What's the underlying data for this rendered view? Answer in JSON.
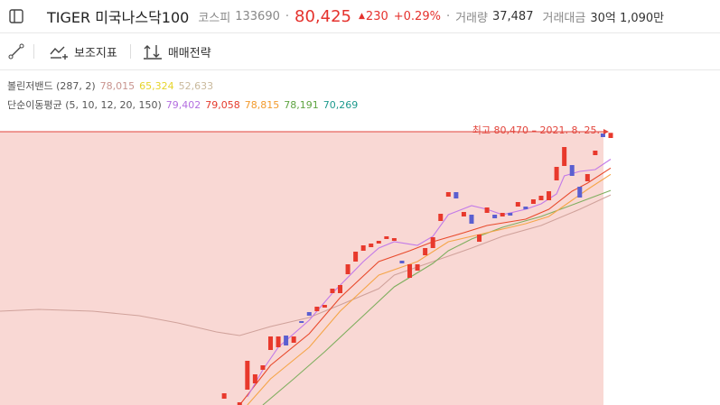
{
  "header": {
    "title": "TIGER 미국나스닥100",
    "market": "코스피",
    "code": "133690",
    "price": "80,425",
    "change": "230",
    "change_pct": "+0.29%",
    "volume_label": "거래량",
    "volume": "37,487",
    "amount_label": "거래대금",
    "amount": "30억 1,090만"
  },
  "toolbar": {
    "indicators": "보조지표",
    "strategy": "매매전략"
  },
  "legend": [
    {
      "label": "볼린저밴드 (287, 2)",
      "items": [
        {
          "text": "78,015",
          "color": "#c9958f"
        },
        {
          "text": "65,324",
          "color": "#e6d42a"
        },
        {
          "text": "52,633",
          "color": "#c9b99c"
        }
      ]
    },
    {
      "label": "단순이동평균 (5, 10, 12, 20, 150)",
      "items": [
        {
          "text": "79,402",
          "color": "#b46fe0"
        },
        {
          "text": "79,058",
          "color": "#e53b2c"
        },
        {
          "text": "78,815",
          "color": "#f39a2c"
        },
        {
          "text": "78,191",
          "color": "#5fa442"
        },
        {
          "text": "70,269",
          "color": "#1e9a8e"
        }
      ]
    }
  ],
  "chart_data": {
    "type": "candlestick",
    "xlim": [
      0,
      79
    ],
    "ylim": [
      69865,
      80785
    ],
    "up_color": "#e8392c",
    "down_color": "#5b5fd0",
    "annotation": {
      "label": "최고 80,470 – 2021. 8. 25.",
      "value": 80470,
      "color": "#e2453c"
    },
    "open": [
      null,
      null,
      null,
      null,
      null,
      null,
      null,
      null,
      null,
      null,
      null,
      null,
      null,
      null,
      null,
      null,
      null,
      null,
      null,
      null,
      null,
      null,
      null,
      null,
      null,
      null,
      null,
      null,
      null,
      70110,
      null,
      69865,
      70460,
      70705,
      71230,
      72000,
      72105,
      72560,
      72280,
      73120,
      73470,
      73505,
      73645,
      74205,
      74205,
      74940,
      75430,
      75850,
      75990,
      76130,
      76305,
      76235,
      75465,
      74800,
      75080,
      75675,
      75955,
      77005,
      77950,
      78125,
      77180,
      77250,
      76200,
      77320,
      77250,
      77180,
      77320,
      77565,
      77565,
      77670,
      77810,
      77810,
      78580,
      79140,
      79175,
      78335,
      78545,
      79560,
      80400,
      80225
    ],
    "close": [
      null,
      null,
      null,
      null,
      null,
      null,
      null,
      null,
      null,
      null,
      null,
      null,
      null,
      null,
      null,
      null,
      null,
      null,
      null,
      null,
      null,
      null,
      null,
      null,
      null,
      null,
      null,
      null,
      null,
      70320,
      null,
      69970,
      71580,
      71055,
      71405,
      72525,
      72525,
      72175,
      72525,
      73050,
      73330,
      73680,
      73750,
      74380,
      74520,
      75325,
      75815,
      76060,
      76130,
      76235,
      76410,
      76340,
      75360,
      75325,
      75325,
      75955,
      76375,
      77285,
      78125,
      77880,
      77355,
      76900,
      76480,
      77530,
      77110,
      77320,
      77215,
      77740,
      77460,
      77845,
      77985,
      78160,
      79105,
      79875,
      78755,
      77915,
      78825,
      79735,
      80260,
      80425
    ],
    "series": [
      {
        "color": "#d0a29b",
        "x": [
          0,
          5,
          12,
          18,
          23,
          28,
          31,
          35,
          40,
          44,
          49,
          51,
          56,
          61,
          65,
          70,
          75,
          79
        ],
        "values": [
          73505,
          73575,
          73505,
          73330,
          73050,
          72700,
          72560,
          72910,
          73260,
          73750,
          74380,
          74905,
          75430,
          75955,
          76410,
          76830,
          77460,
          78015
        ]
      },
      {
        "color": "#7fae5f",
        "x": [
          34,
          38,
          42,
          47,
          51,
          56,
          58,
          61,
          65,
          70,
          75,
          79
        ],
        "values": [
          69865,
          70880,
          71930,
          73330,
          74450,
          75360,
          75850,
          76305,
          76760,
          77180,
          77740,
          78191
        ]
      },
      {
        "color": "#f5a548",
        "x": [
          32,
          35,
          40,
          44,
          49,
          54,
          58,
          63,
          68,
          71,
          74,
          76,
          79
        ],
        "values": [
          69865,
          70880,
          72105,
          73505,
          74905,
          75430,
          76200,
          76550,
          76900,
          77180,
          77810,
          78230,
          78815
        ]
      },
      {
        "color": "#e84a2c",
        "x": [
          31,
          35,
          40,
          44,
          49,
          53,
          56,
          60,
          63,
          68,
          71,
          74,
          76,
          79
        ],
        "values": [
          69865,
          71405,
          72630,
          74030,
          75430,
          75850,
          76200,
          76550,
          76830,
          77075,
          77460,
          78160,
          78475,
          79058
        ]
      },
      {
        "color": "#c27ae8",
        "x": [
          32,
          34,
          36,
          40,
          43,
          47,
          49,
          51,
          54,
          56,
          58,
          61,
          63,
          65,
          68,
          70,
          72,
          73,
          75,
          77,
          79
        ],
        "values": [
          70180,
          71230,
          72105,
          73155,
          74205,
          75430,
          75955,
          76200,
          76060,
          76410,
          77250,
          77600,
          77460,
          77250,
          77460,
          77670,
          78055,
          78755,
          78930,
          79000,
          79402
        ]
      }
    ]
  }
}
